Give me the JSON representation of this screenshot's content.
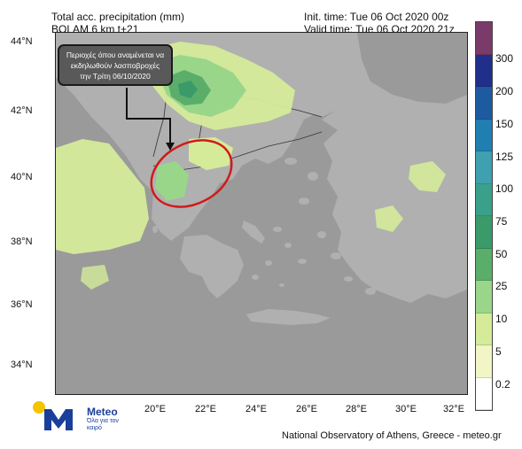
{
  "header": {
    "title_line1": "Total acc. precipitation (mm)",
    "title_line2": "BOLAM 6 km t+21",
    "init_time": "Init. time: Tue 06 Oct 2020 00z",
    "valid_time": "Valid time: Tue 06 Oct 2020 21z"
  },
  "callout": {
    "line1": "Περιοχές όπου αναμένεται να",
    "line2": "εκδηλωθούν λασποβροχές",
    "line3": "την Τρίτη 06/10/2020"
  },
  "axes": {
    "lat_labels": [
      "44°N",
      "42°N",
      "40°N",
      "38°N",
      "36°N",
      "34°N"
    ],
    "lon_labels": [
      "20°E",
      "22°E",
      "24°E",
      "26°E",
      "28°E",
      "30°E",
      "32°E"
    ]
  },
  "legend": {
    "labels": [
      "300",
      "200",
      "150",
      "125",
      "100",
      "75",
      "50",
      "25",
      "10",
      "5",
      "0.2"
    ],
    "colors": [
      "#7a3a6a",
      "#1f2f8a",
      "#1e5aa0",
      "#1f7fb0",
      "#3fa0b0",
      "#3aa08a",
      "#3a9a6a",
      "#5aae6a",
      "#9ad68a",
      "#d5eb9a",
      "#f2f5c6",
      "#ffffff"
    ]
  },
  "colors": {
    "land": "#b0b0b0",
    "sea": "#9a9a9a",
    "highlight_ellipse": "#d11a1a",
    "precip_light": "#d5eb9a",
    "precip_mid": "#9ad68a",
    "precip_heavy": "#3a9a6a"
  },
  "logo": {
    "name": "Meteo",
    "tagline": "Όλα για τον καιρό"
  },
  "footer": {
    "credit": "National Observatory of Athens, Greece - meteo.gr"
  }
}
